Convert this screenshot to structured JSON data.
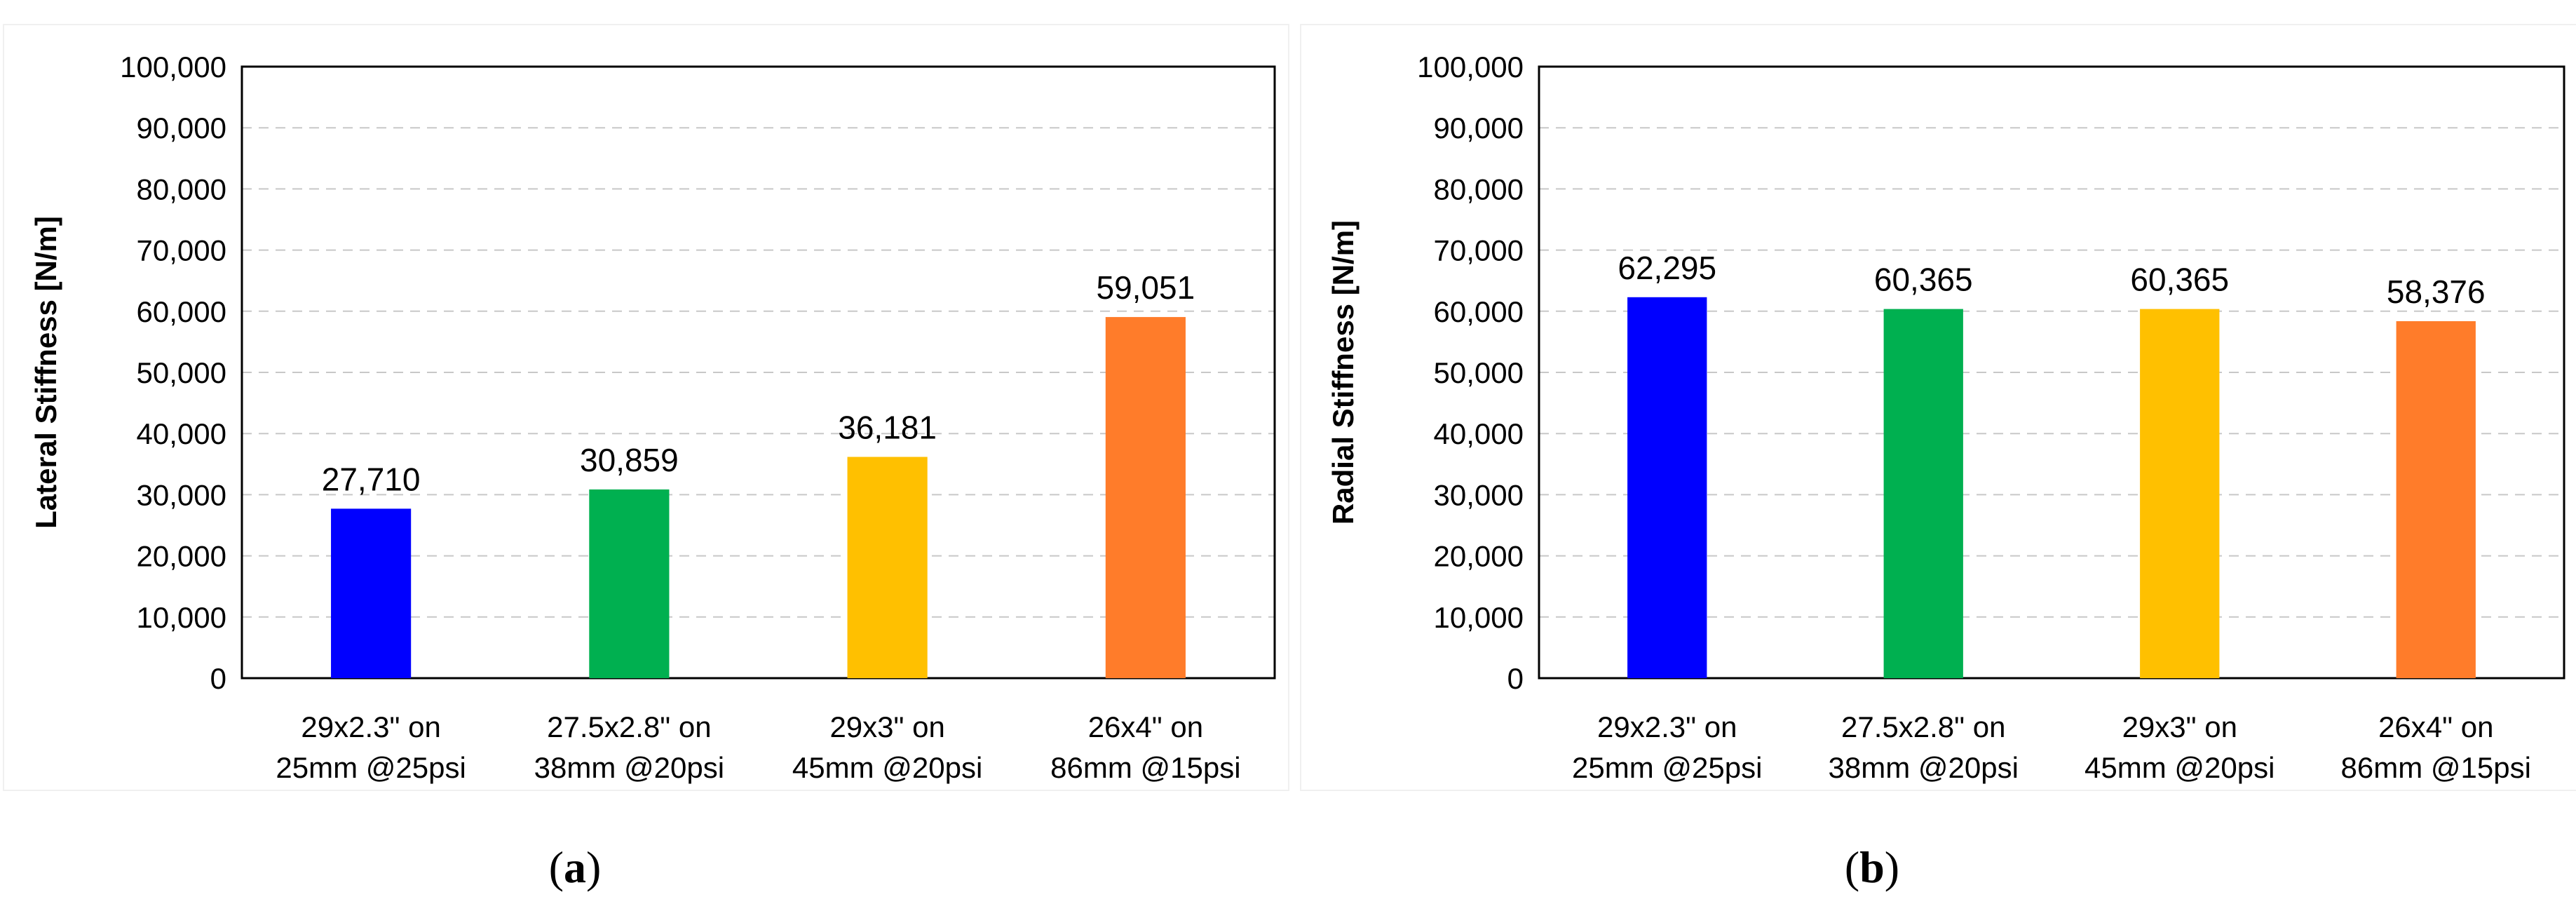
{
  "chart_data": [
    {
      "type": "bar",
      "panel": "a",
      "title": "",
      "xlabel": "",
      "ylabel": "Lateral Stiffness [N/m]",
      "ylim": [
        0,
        100000
      ],
      "yticks": [
        "0",
        "10,000",
        "20,000",
        "30,000",
        "40,000",
        "50,000",
        "60,000",
        "70,000",
        "80,000",
        "90,000",
        "100,000"
      ],
      "grid": true,
      "categories": [
        [
          "29x2.3\" on",
          "25mm @25psi"
        ],
        [
          "27.5x2.8\" on",
          "38mm @20psi"
        ],
        [
          "29x3\" on",
          "45mm @20psi"
        ],
        [
          "26x4\" on",
          "86mm @15psi"
        ]
      ],
      "values": [
        27710,
        30859,
        36181,
        59051
      ],
      "data_labels": [
        "27,710",
        "30,859",
        "36,181",
        "59,051"
      ],
      "colors": [
        "#0000ff",
        "#00b050",
        "#ffc000",
        "#ff7c2a"
      ]
    },
    {
      "type": "bar",
      "panel": "b",
      "title": "",
      "xlabel": "",
      "ylabel": "Radial Stiffness [N/m]",
      "ylim": [
        0,
        100000
      ],
      "yticks": [
        "0",
        "10,000",
        "20,000",
        "30,000",
        "40,000",
        "50,000",
        "60,000",
        "70,000",
        "80,000",
        "90,000",
        "100,000"
      ],
      "grid": true,
      "categories": [
        [
          "29x2.3\" on",
          "25mm @25psi"
        ],
        [
          "27.5x2.8\" on",
          "38mm @20psi"
        ],
        [
          "29x3\" on",
          "45mm @20psi"
        ],
        [
          "26x4\" on",
          "86mm @15psi"
        ]
      ],
      "values": [
        62295,
        60365,
        60365,
        58376
      ],
      "data_labels": [
        "62,295",
        "60,365",
        "60,365",
        "58,376"
      ],
      "colors": [
        "#0000ff",
        "#00b050",
        "#ffc000",
        "#ff7c2a"
      ]
    }
  ]
}
